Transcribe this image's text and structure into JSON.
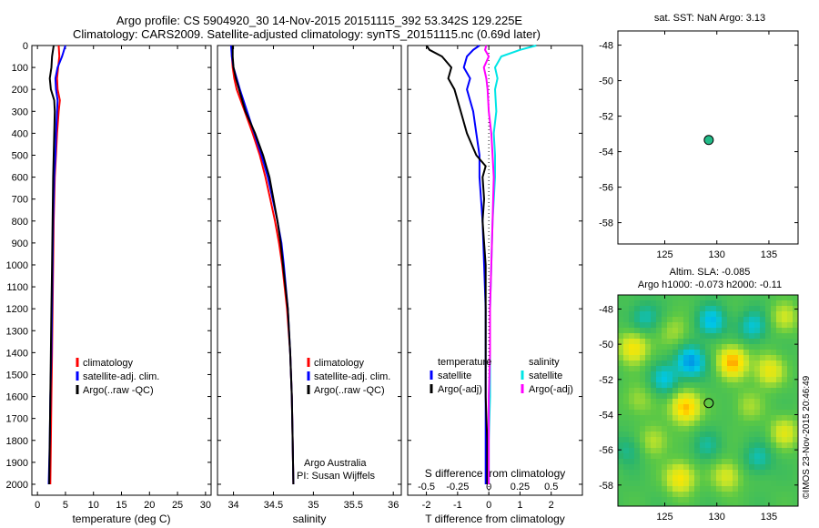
{
  "title": {
    "line1": "Argo profile: CS 5904920_30 14-Nov-2015 20151115_392 53.342S 129.225E",
    "line2": "Climatology: CARS2009. Satellite-adjusted climatology: synTS_20151115.nc (0.69d later)"
  },
  "colors": {
    "climatology": "#ff0000",
    "satellite": "#0000ff",
    "argo": "#000000",
    "satellite_salinity": "#00e5e5",
    "argo_salinity": "#ff00ff",
    "dot": "#22bb88"
  },
  "credit": {
    "institution": "Argo Australia",
    "pi": "PI: Susan Wijffels",
    "watermark": "©IMOS 23-Nov-2015 20:46:49"
  },
  "chart_data": [
    {
      "type": "line",
      "name": "temperature-profile",
      "xlabel": "temperature (deg C)",
      "xlim": [
        -1,
        31
      ],
      "xticks": [
        0,
        5,
        10,
        15,
        20,
        25,
        30
      ],
      "ylim": [
        0,
        2050
      ],
      "yticks": [
        0,
        100,
        200,
        300,
        400,
        500,
        600,
        700,
        800,
        900,
        1000,
        1100,
        1200,
        1300,
        1400,
        1500,
        1600,
        1700,
        1800,
        1900,
        2000
      ],
      "legend": [
        "climatology",
        "satellite-adj. clim.",
        "Argo(..raw -QC)"
      ],
      "series": [
        {
          "name": "climatology",
          "depth": [
            0,
            50,
            100,
            150,
            200,
            250,
            300,
            400,
            500,
            600,
            800,
            1000,
            1200,
            1400,
            1600,
            1800,
            2000
          ],
          "values": [
            3.8,
            3.9,
            3.7,
            3.5,
            3.6,
            4.0,
            3.8,
            3.5,
            3.3,
            3.1,
            2.9,
            2.8,
            2.7,
            2.6,
            2.5,
            2.4,
            2.3
          ]
        },
        {
          "name": "satellite-adj. clim.",
          "depth": [
            0,
            50,
            100,
            150,
            200,
            250,
            300,
            400,
            500,
            600,
            800,
            1000,
            1200,
            1400,
            1600,
            1800,
            2000
          ],
          "values": [
            5.0,
            4.4,
            3.6,
            3.2,
            3.3,
            3.6,
            3.5,
            3.3,
            3.2,
            3.0,
            2.8,
            2.7,
            2.6,
            2.5,
            2.3,
            2.2,
            2.0
          ]
        },
        {
          "name": "Argo(..raw -QC)",
          "depth": [
            0,
            50,
            100,
            150,
            200,
            250,
            300,
            400,
            500,
            600,
            800,
            1000,
            1200,
            1400,
            1600,
            1800,
            2000
          ],
          "values": [
            2.9,
            2.6,
            2.5,
            2.2,
            2.4,
            3.0,
            3.1,
            3.0,
            2.9,
            2.8,
            2.7,
            2.6,
            2.5,
            2.4,
            2.3,
            2.2,
            2.1
          ]
        }
      ]
    },
    {
      "type": "line",
      "name": "salinity-profile",
      "xlabel": "salinity",
      "xlim": [
        33.8,
        36.1
      ],
      "xticks": [
        34,
        34.5,
        35,
        35.5,
        36
      ],
      "ylim": [
        0,
        2050
      ],
      "legend": [
        "climatology",
        "satellite-adj. clim.",
        "Argo(..raw -QC)"
      ],
      "series": [
        {
          "name": "climatology",
          "depth": [
            0,
            50,
            100,
            150,
            200,
            300,
            400,
            500,
            600,
            700,
            800,
            900,
            1000,
            1200,
            1400,
            1600,
            1800,
            2000
          ],
          "values": [
            33.98,
            33.98,
            33.99,
            34.01,
            34.04,
            34.14,
            34.24,
            34.33,
            34.4,
            34.46,
            34.52,
            34.57,
            34.61,
            34.67,
            34.71,
            34.73,
            34.74,
            34.75
          ]
        },
        {
          "name": "satellite-adj. clim.",
          "depth": [
            0,
            50,
            100,
            150,
            200,
            300,
            400,
            500,
            600,
            700,
            800,
            900,
            1000,
            1200,
            1400,
            1600,
            1800,
            2000
          ],
          "values": [
            33.97,
            33.98,
            34.0,
            34.04,
            34.08,
            34.17,
            34.26,
            34.35,
            34.43,
            34.49,
            34.55,
            34.6,
            34.63,
            34.68,
            34.71,
            34.73,
            34.74,
            34.75
          ]
        },
        {
          "name": "Argo(..raw -QC)",
          "depth": [
            0,
            50,
            100,
            150,
            200,
            300,
            400,
            500,
            600,
            700,
            800,
            900,
            1000,
            1200,
            1400,
            1600,
            1800,
            2000
          ],
          "values": [
            33.99,
            33.99,
            34.0,
            34.03,
            34.07,
            34.15,
            34.27,
            34.37,
            34.45,
            34.5,
            34.55,
            34.59,
            34.62,
            34.68,
            34.71,
            34.73,
            34.74,
            34.75
          ]
        }
      ]
    },
    {
      "type": "line",
      "name": "difference-profile",
      "xlabel": "T difference from climatology",
      "xlabel2": "S difference from climatology",
      "xlim": [
        -2.6,
        3
      ],
      "xticks": [
        -2,
        -1,
        0,
        1,
        2
      ],
      "s_ticks": [
        -0.5,
        -0.25,
        0,
        0.25,
        0.5
      ],
      "ylim": [
        0,
        2050
      ],
      "legend_titles": [
        "temperature",
        "salinity"
      ],
      "legend": [
        "satellite",
        "Argo(-adj)",
        "satellite",
        "Argo(-adj)"
      ],
      "series": [
        {
          "name": "T satellite",
          "depth": [
            0,
            20,
            50,
            100,
            150,
            200,
            300,
            400,
            500,
            600,
            800,
            1000,
            1200,
            1400,
            1600,
            1800,
            2000
          ],
          "values": [
            -0.3,
            -0.5,
            -0.7,
            -0.8,
            -0.6,
            -0.7,
            -0.5,
            -0.4,
            -0.3,
            -0.3,
            -0.2,
            -0.15,
            -0.1,
            -0.1,
            -0.1,
            -0.1,
            -0.1
          ]
        },
        {
          "name": "T Argo(-adj)",
          "depth": [
            0,
            20,
            50,
            100,
            150,
            200,
            300,
            400,
            500,
            550,
            600,
            700,
            800,
            1000,
            1200,
            1400,
            1600,
            1800,
            2000
          ],
          "values": [
            -2.0,
            -1.9,
            -1.5,
            -1.2,
            -1.3,
            -1.1,
            -0.9,
            -0.7,
            -0.4,
            -0.1,
            -0.2,
            -0.15,
            -0.2,
            -0.1,
            -0.1,
            -0.1,
            -0.1,
            -0.05,
            -0.05
          ]
        },
        {
          "name": "S satellite",
          "depth": [
            0,
            20,
            50,
            100,
            150,
            200,
            300,
            400,
            500,
            600,
            800,
            1000,
            1200,
            1400,
            1600,
            1800,
            2000
          ],
          "values": [
            0.38,
            0.25,
            0.1,
            0.05,
            0.07,
            0.05,
            0.06,
            0.04,
            0.05,
            0.05,
            0.03,
            0.02,
            0.01,
            0.01,
            0.01,
            0.0,
            0.0
          ]
        },
        {
          "name": "S Argo(-adj)",
          "depth": [
            0,
            20,
            50,
            100,
            150,
            200,
            300,
            400,
            500,
            600,
            800,
            1000,
            1200,
            1400,
            1600,
            1800,
            2000
          ],
          "values": [
            -0.02,
            -0.03,
            0.0,
            -0.04,
            -0.02,
            -0.01,
            0.0,
            0.02,
            0.03,
            0.04,
            0.03,
            0.02,
            0.01,
            0.01,
            0.0,
            0.0,
            0.0
          ]
        }
      ]
    },
    {
      "type": "scatter",
      "name": "location-map",
      "title": "sat. SST: NaN Argo: 3.13",
      "xlim": [
        120.5,
        137.8
      ],
      "ylim": [
        -59.2,
        -47.2
      ],
      "xticks": [
        125,
        130,
        135
      ],
      "yticks": [
        -48,
        -50,
        -52,
        -54,
        -56,
        -58
      ],
      "points": [
        {
          "x": 129.225,
          "y": -53.342
        }
      ]
    },
    {
      "type": "heatmap",
      "name": "altimetry-map",
      "title": "Altim. SLA: -0.085",
      "subtitle": "Argo h1000: -0.073 h2000: -0.11",
      "xlim": [
        120.5,
        137.8
      ],
      "ylim": [
        -59.2,
        -47.2
      ],
      "xticks": [
        125,
        130,
        135
      ],
      "yticks": [
        -48,
        -50,
        -52,
        -54,
        -56,
        -58
      ],
      "points": [
        {
          "x": 129.225,
          "y": -53.342
        }
      ],
      "blobs": [
        {
          "x": 127.5,
          "y": -51.0,
          "v": -0.8
        },
        {
          "x": 129.5,
          "y": -48.7,
          "v": -0.6
        },
        {
          "x": 123.0,
          "y": -48.5,
          "v": -0.4
        },
        {
          "x": 125.0,
          "y": -52.0,
          "v": -0.5
        },
        {
          "x": 131.5,
          "y": -51.0,
          "v": 0.9
        },
        {
          "x": 122.0,
          "y": -50.2,
          "v": 0.7
        },
        {
          "x": 127.0,
          "y": -53.6,
          "v": 0.9
        },
        {
          "x": 126.5,
          "y": -57.6,
          "v": 0.7
        },
        {
          "x": 135.0,
          "y": -51.5,
          "v": 0.6
        },
        {
          "x": 133.5,
          "y": -49.0,
          "v": -0.5
        },
        {
          "x": 134.0,
          "y": -56.5,
          "v": -0.4
        },
        {
          "x": 121.5,
          "y": -56.0,
          "v": -0.3
        },
        {
          "x": 131.0,
          "y": -57.5,
          "v": 0.5
        },
        {
          "x": 136.5,
          "y": -55.0,
          "v": 0.5
        },
        {
          "x": 124.0,
          "y": -55.5,
          "v": 0.4
        },
        {
          "x": 129.0,
          "y": -55.8,
          "v": -0.3
        },
        {
          "x": 133.0,
          "y": -53.5,
          "v": 0.3
        },
        {
          "x": 122.5,
          "y": -53.2,
          "v": 0.3
        },
        {
          "x": 136.5,
          "y": -48.5,
          "v": 0.4
        },
        {
          "x": 126.0,
          "y": -49.3,
          "v": 0.3
        }
      ]
    }
  ]
}
